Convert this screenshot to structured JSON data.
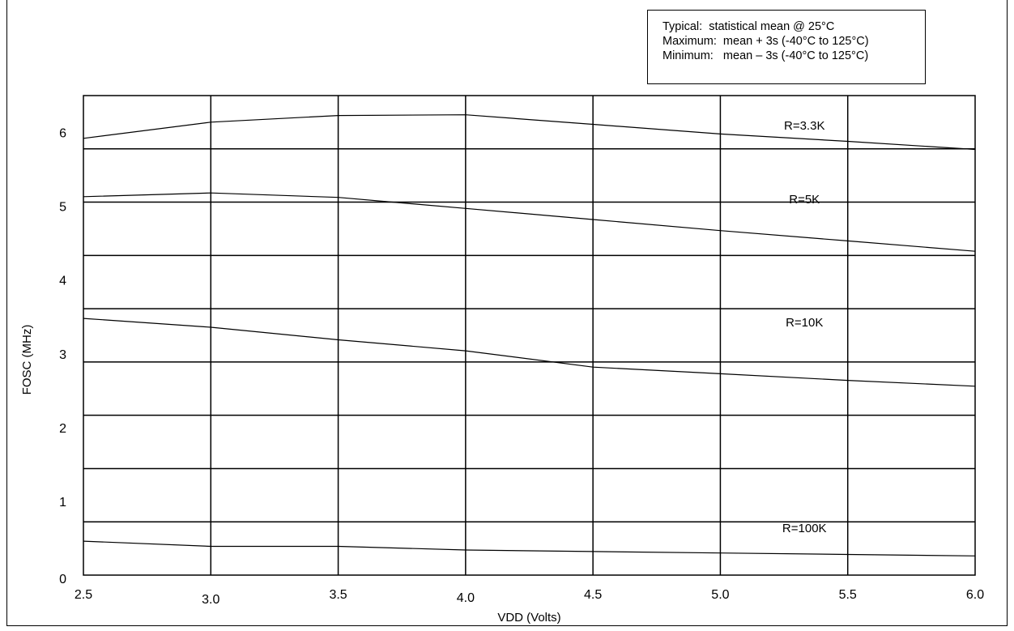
{
  "legend": {
    "lines": [
      "Typical:  statistical mean @ 25°C",
      "Maximum:  mean + 3s (-40°C to 125°C)",
      "Minimum:   mean – 3s (-40°C to 125°C)"
    ]
  },
  "colors": {
    "line": "#000000",
    "grid": "#000000",
    "background": "#ffffff"
  },
  "chart_data": {
    "type": "line",
    "title": "",
    "xlabel": "VDD (Volts)",
    "ylabel": "FOSC (MHz)",
    "xlim": [
      2.5,
      6.0
    ],
    "ylim": [
      0,
      6.5
    ],
    "x_ticks": [
      "2.5",
      "3.0",
      "3.5",
      "4.0",
      "4.5",
      "5.0",
      "5.5",
      "6.0"
    ],
    "y_ticks": [
      "0",
      "1",
      "2",
      "3",
      "4",
      "5",
      "6"
    ],
    "grid": true,
    "x": [
      2.5,
      3.0,
      3.5,
      4.0,
      4.5,
      5.0,
      5.5,
      6.0
    ],
    "series": [
      {
        "name": "R=3.3K",
        "values": [
          5.92,
          6.14,
          6.23,
          6.24,
          6.11,
          5.98,
          5.88,
          5.77
        ]
      },
      {
        "name": "R=5K",
        "values": [
          5.13,
          5.18,
          5.12,
          4.97,
          4.82,
          4.67,
          4.53,
          4.39
        ]
      },
      {
        "name": "R=10K",
        "values": [
          3.48,
          3.36,
          3.19,
          3.04,
          2.82,
          2.73,
          2.64,
          2.56
        ]
      },
      {
        "name": "R=100K",
        "values": [
          0.46,
          0.39,
          0.39,
          0.34,
          0.32,
          0.3,
          0.28,
          0.26
        ]
      }
    ],
    "series_label_x": 5.33,
    "series_label_y": [
      6.04,
      5.04,
      3.37,
      0.58
    ]
  }
}
